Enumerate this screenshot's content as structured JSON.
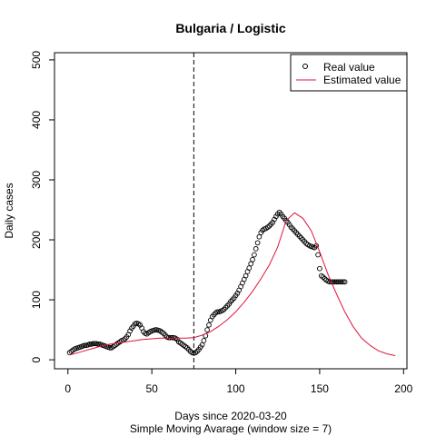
{
  "chart_data": {
    "type": "scatter",
    "title": "Bulgaria / Logistic",
    "xlabel": "Days since 2020-03-20",
    "xlabel2": "Simple Moving Avarage (window size = 7)",
    "ylabel": "Daily cases",
    "xlim": [
      -8,
      202
    ],
    "ylim": [
      -15,
      512
    ],
    "xticks": [
      0,
      50,
      100,
      150,
      200
    ],
    "yticks": [
      0,
      100,
      200,
      300,
      400,
      500
    ],
    "vline_x": 75,
    "legend": {
      "position": "top-right",
      "entries": [
        "Real value",
        "Estimated value"
      ]
    },
    "series": [
      {
        "name": "Real value",
        "kind": "points",
        "color": "#000000",
        "x": [
          1,
          2,
          3,
          4,
          5,
          6,
          7,
          8,
          9,
          10,
          11,
          12,
          13,
          14,
          15,
          16,
          17,
          18,
          19,
          20,
          21,
          22,
          23,
          24,
          25,
          26,
          27,
          28,
          29,
          30,
          31,
          32,
          33,
          34,
          35,
          36,
          37,
          38,
          39,
          40,
          41,
          42,
          43,
          44,
          45,
          46,
          47,
          48,
          49,
          50,
          51,
          52,
          53,
          54,
          55,
          56,
          57,
          58,
          59,
          60,
          61,
          62,
          63,
          64,
          65,
          66,
          67,
          68,
          69,
          70,
          71,
          72,
          73,
          74,
          75,
          76,
          77,
          78,
          79,
          80,
          81,
          82,
          83,
          84,
          85,
          86,
          87,
          88,
          89,
          90,
          91,
          92,
          93,
          94,
          95,
          96,
          97,
          98,
          99,
          100,
          101,
          102,
          103,
          104,
          105,
          106,
          107,
          108,
          109,
          110,
          111,
          112,
          113,
          114,
          115,
          116,
          117,
          118,
          119,
          120,
          121,
          122,
          123,
          124,
          125,
          126,
          127,
          128,
          129,
          130,
          131,
          132,
          133,
          134,
          135,
          136,
          137,
          138,
          139,
          140,
          141,
          142,
          143,
          144,
          145,
          146,
          147,
          148,
          149,
          150,
          151,
          152,
          153,
          154,
          155,
          156,
          157,
          158,
          159,
          160,
          161,
          162,
          163,
          164,
          165
        ],
        "y": [
          12,
          14,
          16,
          18,
          19,
          20,
          21,
          22,
          23,
          24,
          24,
          25,
          26,
          26,
          27,
          27,
          27,
          26,
          26,
          25,
          24,
          23,
          22,
          21,
          20,
          20,
          22,
          24,
          26,
          28,
          30,
          32,
          33,
          35,
          38,
          42,
          48,
          53,
          56,
          60,
          61,
          60,
          58,
          53,
          47,
          44,
          43,
          45,
          47,
          48,
          49,
          50,
          50,
          49,
          48,
          46,
          44,
          41,
          38,
          37,
          37,
          37,
          37,
          36,
          34,
          30,
          28,
          26,
          24,
          22,
          20,
          17,
          14,
          12,
          11,
          12,
          14,
          17,
          21,
          25,
          32,
          40,
          50,
          58,
          66,
          72,
          75,
          78,
          80,
          80,
          81,
          82,
          84,
          87,
          90,
          93,
          97,
          100,
          103,
          107,
          111,
          116,
          122,
          128,
          134,
          140,
          147,
          153,
          160,
          167,
          175,
          185,
          195,
          205,
          212,
          216,
          218,
          219,
          221,
          223,
          226,
          229,
          234,
          239,
          243,
          246,
          243,
          239,
          236,
          232,
          229,
          225,
          221,
          218,
          215,
          212,
          209,
          206,
          203,
          200,
          197,
          194,
          192,
          190,
          189,
          188,
          187,
          190,
          175,
          152,
          140,
          138,
          135,
          133,
          131,
          130,
          130,
          130,
          130,
          130,
          130,
          130,
          130,
          130,
          130
        ]
      },
      {
        "name": "Estimated value",
        "kind": "line",
        "color": "#dc143c",
        "x": [
          1,
          5,
          10,
          15,
          20,
          25,
          30,
          35,
          40,
          45,
          50,
          55,
          60,
          65,
          70,
          75,
          80,
          85,
          90,
          95,
          100,
          105,
          110,
          115,
          120,
          125,
          130,
          135,
          140,
          145,
          150,
          155,
          160,
          165,
          170,
          175,
          180,
          185,
          190,
          195
        ],
        "y": [
          8,
          11,
          15,
          19,
          23,
          26,
          28,
          30,
          32,
          34,
          35,
          36,
          36,
          36,
          36,
          37,
          41,
          47,
          56,
          67,
          80,
          96,
          114,
          135,
          158,
          188,
          232,
          245,
          236,
          215,
          180,
          142,
          110,
          80,
          55,
          36,
          24,
          15,
          10,
          7
        ]
      }
    ]
  }
}
